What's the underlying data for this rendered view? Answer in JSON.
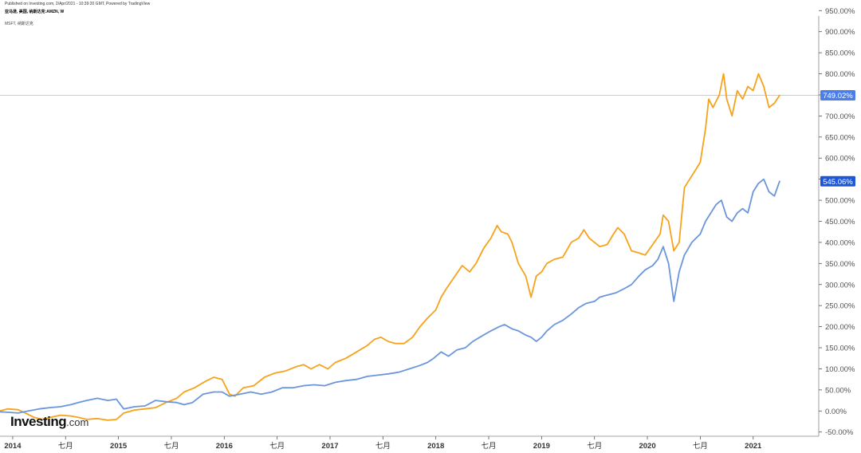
{
  "header": {
    "published": "Published on Investing.com, 2/Apr/2021 - 10:39:20 GMT, Powered by TradingView",
    "symbol": "亚马逊, 美国, 纳斯达克:AMZN, W",
    "compare": "MSFT, 纳斯达克"
  },
  "logo": {
    "main": "Investing",
    "suffix": ".com"
  },
  "colors": {
    "amzn": "#F7A21B",
    "msft": "#6B95DC",
    "amzn_badge": "#4C7EE8",
    "msft_badge": "#1E57D6",
    "axis": "#555555",
    "ref_line": "#BBBBBB"
  },
  "chart_data": {
    "type": "line",
    "ylim": [
      -60,
      960
    ],
    "y_unit": "%",
    "x_range": [
      2013.88,
      2021.62
    ],
    "y_ticks": [
      "950.00%",
      "900.00%",
      "850.00%",
      "800.00%",
      "750.00%",
      "700.00%",
      "650.00%",
      "600.00%",
      "550.00%",
      "500.00%",
      "450.00%",
      "400.00%",
      "350.00%",
      "300.00%",
      "250.00%",
      "200.00%",
      "150.00%",
      "100.00%",
      "50.00%",
      "0.00%",
      "-50.00%"
    ],
    "x_ticks": [
      {
        "label": "2014",
        "x": 2014.0,
        "bold": true
      },
      {
        "label": "七月",
        "x": 2014.5,
        "bold": false
      },
      {
        "label": "2015",
        "x": 2015.0,
        "bold": true
      },
      {
        "label": "七月",
        "x": 2015.5,
        "bold": false
      },
      {
        "label": "2016",
        "x": 2016.0,
        "bold": true
      },
      {
        "label": "七月",
        "x": 2016.5,
        "bold": false
      },
      {
        "label": "2017",
        "x": 2017.0,
        "bold": true
      },
      {
        "label": "七月",
        "x": 2017.5,
        "bold": false
      },
      {
        "label": "2018",
        "x": 2018.0,
        "bold": true
      },
      {
        "label": "七月",
        "x": 2018.5,
        "bold": false
      },
      {
        "label": "2019",
        "x": 2019.0,
        "bold": true
      },
      {
        "label": "七月",
        "x": 2019.5,
        "bold": false
      },
      {
        "label": "2020",
        "x": 2020.0,
        "bold": true
      },
      {
        "label": "七月",
        "x": 2020.5,
        "bold": false
      },
      {
        "label": "2021",
        "x": 2021.0,
        "bold": true
      }
    ],
    "series": [
      {
        "key": "amzn",
        "last_label": "749.02%",
        "points": [
          [
            2013.88,
            0
          ],
          [
            2013.95,
            5
          ],
          [
            2014.05,
            3
          ],
          [
            2014.12,
            -5
          ],
          [
            2014.2,
            -15
          ],
          [
            2014.28,
            -20
          ],
          [
            2014.36,
            -15
          ],
          [
            2014.45,
            -10
          ],
          [
            2014.55,
            -12
          ],
          [
            2014.62,
            -15
          ],
          [
            2014.7,
            -20
          ],
          [
            2014.8,
            -18
          ],
          [
            2014.9,
            -22
          ],
          [
            2014.98,
            -20
          ],
          [
            2015.05,
            -5
          ],
          [
            2015.15,
            2
          ],
          [
            2015.25,
            5
          ],
          [
            2015.35,
            8
          ],
          [
            2015.45,
            20
          ],
          [
            2015.55,
            30
          ],
          [
            2015.62,
            45
          ],
          [
            2015.72,
            55
          ],
          [
            2015.82,
            70
          ],
          [
            2015.9,
            80
          ],
          [
            2015.98,
            75
          ],
          [
            2016.05,
            40
          ],
          [
            2016.1,
            35
          ],
          [
            2016.18,
            55
          ],
          [
            2016.28,
            60
          ],
          [
            2016.38,
            80
          ],
          [
            2016.48,
            90
          ],
          [
            2016.58,
            95
          ],
          [
            2016.68,
            105
          ],
          [
            2016.75,
            110
          ],
          [
            2016.82,
            100
          ],
          [
            2016.9,
            110
          ],
          [
            2016.98,
            100
          ],
          [
            2017.05,
            115
          ],
          [
            2017.15,
            125
          ],
          [
            2017.25,
            140
          ],
          [
            2017.35,
            155
          ],
          [
            2017.42,
            170
          ],
          [
            2017.48,
            175
          ],
          [
            2017.55,
            165
          ],
          [
            2017.62,
            160
          ],
          [
            2017.7,
            160
          ],
          [
            2017.78,
            175
          ],
          [
            2017.85,
            200
          ],
          [
            2017.92,
            220
          ],
          [
            2018.0,
            240
          ],
          [
            2018.05,
            270
          ],
          [
            2018.1,
            290
          ],
          [
            2018.18,
            320
          ],
          [
            2018.25,
            345
          ],
          [
            2018.32,
            330
          ],
          [
            2018.38,
            350
          ],
          [
            2018.45,
            385
          ],
          [
            2018.52,
            410
          ],
          [
            2018.58,
            440
          ],
          [
            2018.62,
            425
          ],
          [
            2018.68,
            420
          ],
          [
            2018.72,
            400
          ],
          [
            2018.78,
            350
          ],
          [
            2018.85,
            320
          ],
          [
            2018.9,
            270
          ],
          [
            2018.95,
            320
          ],
          [
            2019.0,
            330
          ],
          [
            2019.05,
            350
          ],
          [
            2019.12,
            360
          ],
          [
            2019.2,
            365
          ],
          [
            2019.28,
            400
          ],
          [
            2019.35,
            410
          ],
          [
            2019.4,
            430
          ],
          [
            2019.45,
            410
          ],
          [
            2019.5,
            400
          ],
          [
            2019.55,
            390
          ],
          [
            2019.62,
            395
          ],
          [
            2019.68,
            420
          ],
          [
            2019.72,
            435
          ],
          [
            2019.78,
            420
          ],
          [
            2019.85,
            380
          ],
          [
            2019.92,
            375
          ],
          [
            2019.98,
            370
          ],
          [
            2020.05,
            395
          ],
          [
            2020.12,
            420
          ],
          [
            2020.15,
            465
          ],
          [
            2020.2,
            450
          ],
          [
            2020.25,
            380
          ],
          [
            2020.3,
            400
          ],
          [
            2020.35,
            530
          ],
          [
            2020.4,
            550
          ],
          [
            2020.45,
            570
          ],
          [
            2020.5,
            590
          ],
          [
            2020.55,
            670
          ],
          [
            2020.58,
            740
          ],
          [
            2020.62,
            720
          ],
          [
            2020.68,
            750
          ],
          [
            2020.72,
            800
          ],
          [
            2020.75,
            740
          ],
          [
            2020.8,
            700
          ],
          [
            2020.85,
            760
          ],
          [
            2020.9,
            740
          ],
          [
            2020.95,
            770
          ],
          [
            2021.0,
            760
          ],
          [
            2021.05,
            800
          ],
          [
            2021.1,
            770
          ],
          [
            2021.15,
            720
          ],
          [
            2021.2,
            730
          ],
          [
            2021.25,
            749
          ]
        ]
      },
      {
        "key": "msft",
        "last_label": "545.06%",
        "points": [
          [
            2013.88,
            -2
          ],
          [
            2013.95,
            -3
          ],
          [
            2014.05,
            -5
          ],
          [
            2014.15,
            0
          ],
          [
            2014.25,
            5
          ],
          [
            2014.35,
            8
          ],
          [
            2014.45,
            10
          ],
          [
            2014.55,
            15
          ],
          [
            2014.62,
            20
          ],
          [
            2014.7,
            25
          ],
          [
            2014.8,
            30
          ],
          [
            2014.9,
            25
          ],
          [
            2014.98,
            28
          ],
          [
            2015.05,
            5
          ],
          [
            2015.15,
            10
          ],
          [
            2015.25,
            12
          ],
          [
            2015.35,
            25
          ],
          [
            2015.45,
            22
          ],
          [
            2015.55,
            20
          ],
          [
            2015.62,
            15
          ],
          [
            2015.7,
            20
          ],
          [
            2015.8,
            40
          ],
          [
            2015.9,
            45
          ],
          [
            2015.98,
            45
          ],
          [
            2016.05,
            35
          ],
          [
            2016.15,
            40
          ],
          [
            2016.25,
            45
          ],
          [
            2016.35,
            40
          ],
          [
            2016.45,
            45
          ],
          [
            2016.55,
            55
          ],
          [
            2016.65,
            55
          ],
          [
            2016.75,
            60
          ],
          [
            2016.85,
            62
          ],
          [
            2016.95,
            60
          ],
          [
            2017.05,
            68
          ],
          [
            2017.15,
            72
          ],
          [
            2017.25,
            75
          ],
          [
            2017.35,
            82
          ],
          [
            2017.45,
            85
          ],
          [
            2017.55,
            88
          ],
          [
            2017.65,
            92
          ],
          [
            2017.75,
            100
          ],
          [
            2017.85,
            108
          ],
          [
            2017.92,
            115
          ],
          [
            2017.98,
            125
          ],
          [
            2018.05,
            140
          ],
          [
            2018.12,
            130
          ],
          [
            2018.2,
            145
          ],
          [
            2018.28,
            150
          ],
          [
            2018.35,
            165
          ],
          [
            2018.45,
            180
          ],
          [
            2018.52,
            190
          ],
          [
            2018.6,
            200
          ],
          [
            2018.65,
            205
          ],
          [
            2018.72,
            195
          ],
          [
            2018.78,
            190
          ],
          [
            2018.85,
            180
          ],
          [
            2018.9,
            175
          ],
          [
            2018.95,
            165
          ],
          [
            2019.0,
            175
          ],
          [
            2019.05,
            190
          ],
          [
            2019.12,
            205
          ],
          [
            2019.2,
            215
          ],
          [
            2019.28,
            230
          ],
          [
            2019.35,
            245
          ],
          [
            2019.42,
            255
          ],
          [
            2019.5,
            260
          ],
          [
            2019.55,
            270
          ],
          [
            2019.62,
            275
          ],
          [
            2019.7,
            280
          ],
          [
            2019.78,
            290
          ],
          [
            2019.85,
            300
          ],
          [
            2019.92,
            320
          ],
          [
            2019.98,
            335
          ],
          [
            2020.05,
            345
          ],
          [
            2020.1,
            360
          ],
          [
            2020.15,
            390
          ],
          [
            2020.2,
            350
          ],
          [
            2020.25,
            260
          ],
          [
            2020.3,
            330
          ],
          [
            2020.35,
            370
          ],
          [
            2020.42,
            400
          ],
          [
            2020.5,
            420
          ],
          [
            2020.55,
            450
          ],
          [
            2020.6,
            470
          ],
          [
            2020.65,
            490
          ],
          [
            2020.7,
            500
          ],
          [
            2020.75,
            460
          ],
          [
            2020.8,
            450
          ],
          [
            2020.85,
            470
          ],
          [
            2020.9,
            480
          ],
          [
            2020.95,
            470
          ],
          [
            2021.0,
            520
          ],
          [
            2021.05,
            540
          ],
          [
            2021.1,
            550
          ],
          [
            2021.15,
            520
          ],
          [
            2021.2,
            510
          ],
          [
            2021.25,
            545
          ]
        ]
      }
    ]
  }
}
